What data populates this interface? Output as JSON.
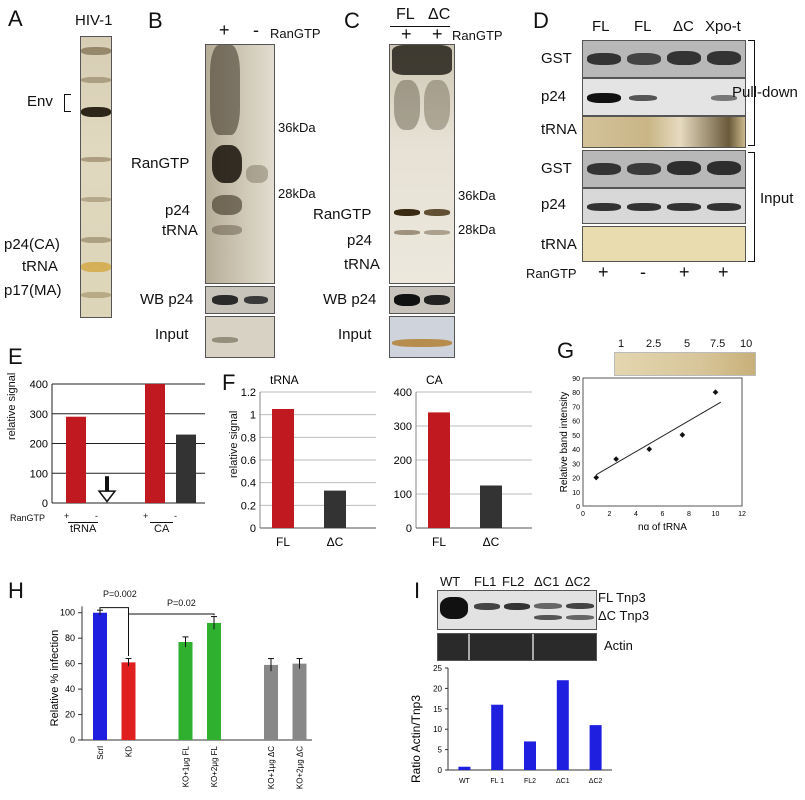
{
  "panels": {
    "A": {
      "letter": "A",
      "lane": "HIV-1",
      "env": "Env",
      "p24": "p24(CA)",
      "trna": "tRNA",
      "p17": "p17(MA)"
    },
    "B": {
      "letter": "B",
      "plus": "+",
      "minus": "-",
      "rangtp": "RanGTP",
      "kda36": "36kDa",
      "kda28": "28kDa",
      "band_rangtp": "RanGTP",
      "band_p24": "p24",
      "band_trna": "tRNA",
      "wb": "WB p24",
      "input": "Input"
    },
    "C": {
      "letter": "C",
      "fl": "FL",
      "dc": "ΔC",
      "plus1": "+",
      "plus2": "+",
      "rangtp": "RanGTP",
      "kda36": "36kDa",
      "kda28": "28kDa",
      "band_rangtp": "RanGTP",
      "band_p24": "p24",
      "band_trna": "tRNA",
      "wb": "WB p24",
      "input": "Input"
    },
    "D": {
      "letter": "D",
      "lanes": [
        "FL",
        "FL",
        "ΔC",
        "Xpo-t"
      ],
      "rows": [
        "GST",
        "p24",
        "tRNA",
        "GST",
        "p24",
        "tRNA"
      ],
      "pulldown": "Pull-down",
      "input": "Input",
      "rangtp": "RanGTP",
      "signs": [
        "+",
        "-",
        "+",
        "+"
      ]
    },
    "E": {
      "letter": "E",
      "ylabel": "relative signal",
      "rangtp": "RanGTP",
      "signs": [
        "+",
        "-",
        "+",
        "-"
      ],
      "groups": [
        "tRNA",
        "CA"
      ]
    },
    "F": {
      "letter": "F",
      "ylabel": "relative signal"
    },
    "G": {
      "letter": "G",
      "strip_labels": [
        "1",
        "2.5",
        "5",
        "7.5",
        "10"
      ]
    },
    "H": {
      "letter": "H",
      "p1": "P=0.002",
      "p2": "P=0.02"
    },
    "I": {
      "letter": "I",
      "lanes": [
        "WT",
        "FL1",
        "FL2",
        "ΔC1",
        "ΔC2"
      ],
      "fl_tnp3": "FL Tnp3",
      "dc_tnp3": "ΔC Tnp3",
      "actin": "Actin"
    }
  },
  "chart_data": [
    {
      "id": "E",
      "type": "bar",
      "categories": [
        "+",
        "-",
        "+",
        "-"
      ],
      "groups": [
        "tRNA",
        "CA"
      ],
      "values": [
        290,
        0,
        400,
        230
      ],
      "colors": [
        "#c0191f",
        "#333333",
        "#c0191f",
        "#333333"
      ],
      "ylabel": "relative signal",
      "yticks": [
        0,
        100,
        200,
        300,
        400
      ],
      "ylim": [
        0,
        400
      ],
      "grid": true,
      "annotation": "arrow"
    },
    {
      "id": "F1",
      "type": "bar",
      "title": "tRNA",
      "categories": [
        "FL",
        "ΔC"
      ],
      "values": [
        1.05,
        0.33
      ],
      "colors": [
        "#c0191f",
        "#333333"
      ],
      "ylabel": "relative signal",
      "yticks": [
        0,
        0.2,
        0.4,
        0.6,
        0.8,
        1,
        1.2
      ],
      "ylim": [
        0,
        1.2
      ],
      "grid": true
    },
    {
      "id": "F2",
      "type": "bar",
      "title": "CA",
      "categories": [
        "FL",
        "ΔC"
      ],
      "values": [
        340,
        125
      ],
      "colors": [
        "#c0191f",
        "#333333"
      ],
      "yticks": [
        0,
        100,
        200,
        300,
        400
      ],
      "ylim": [
        0,
        400
      ],
      "grid": true
    },
    {
      "id": "G",
      "type": "scatter",
      "x": [
        1,
        2.5,
        5,
        7.5,
        10
      ],
      "y": [
        20,
        33,
        40,
        50,
        80
      ],
      "trend": [
        [
          1,
          22
        ],
        [
          10.4,
          73
        ]
      ],
      "xlabel": "ng of tRNA",
      "ylabel": "Relative band intensity",
      "xticks": [
        0,
        2,
        4,
        6,
        8,
        10,
        12
      ],
      "yticks": [
        0,
        10,
        20,
        30,
        40,
        50,
        60,
        70,
        80,
        90
      ],
      "xlim": [
        0,
        12
      ],
      "ylim": [
        0,
        90
      ],
      "grid": false
    },
    {
      "id": "H",
      "type": "bar",
      "categories": [
        "Scrl",
        "KD",
        "",
        "KO+1μg FL",
        "KO+2μg FL",
        "",
        "KO+1μg ΔC",
        "KO+2μg ΔC"
      ],
      "values": [
        100,
        61,
        null,
        77,
        92,
        null,
        59,
        60
      ],
      "errors": [
        2,
        3,
        null,
        4,
        5,
        null,
        5,
        4
      ],
      "colors": [
        "#1f1fe0",
        "#e01f1f",
        null,
        "#2fb02f",
        "#2fb02f",
        null,
        "#888888",
        "#888888"
      ],
      "ylabel": "Relative % infection",
      "yticks": [
        0,
        20,
        40,
        60,
        80,
        100
      ],
      "ylim": [
        0,
        110
      ],
      "grid": false
    },
    {
      "id": "I",
      "type": "bar",
      "categories": [
        "WT",
        "FL 1",
        "FL2",
        "ΔC1",
        "ΔC2"
      ],
      "values": [
        0.8,
        16,
        7,
        22,
        11
      ],
      "color": "#1f1fe0",
      "ylabel": "Ratio Actin/Tnp3",
      "yticks": [
        0,
        5,
        10,
        15,
        20,
        25
      ],
      "ylim": [
        0,
        25
      ],
      "grid": false
    }
  ]
}
